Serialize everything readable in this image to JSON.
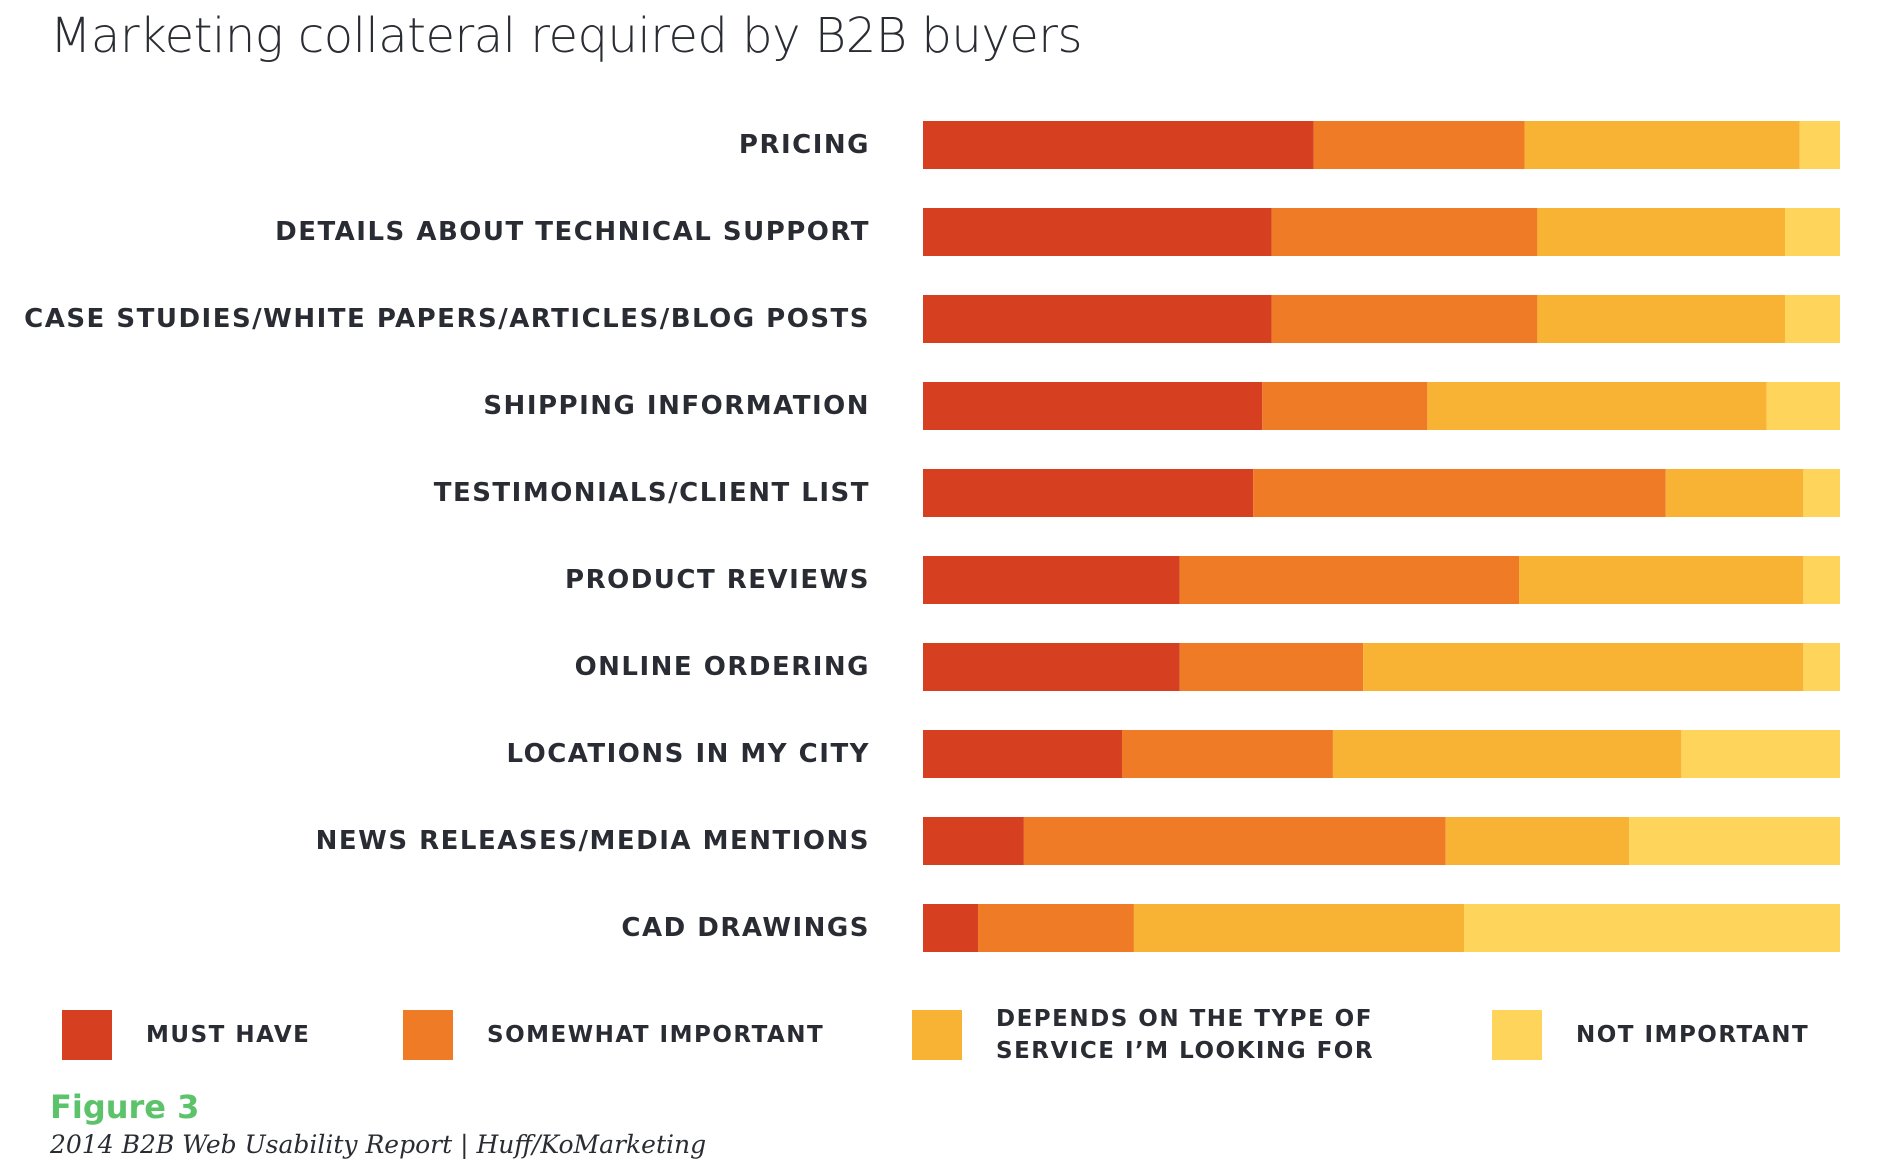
{
  "page": {
    "title": "Marketing collateral required by B2B buyers",
    "figure_label": "Figure 3",
    "source": "2014 B2B Web Usability Report | Huff/KoMarketing"
  },
  "legend": [
    {
      "lines": [
        "MUST HAVE"
      ],
      "color": "#d63f1f"
    },
    {
      "lines": [
        "SOMEWHAT IMPORTANT"
      ],
      "color": "#ef7b26"
    },
    {
      "lines": [
        "DEPENDS ON THE TYPE OF",
        "SERVICE I’M LOOKING FOR"
      ],
      "color": "#f8b234"
    },
    {
      "lines": [
        "NOT IMPORTANT"
      ],
      "color": "#fed55a"
    }
  ],
  "chart_data": {
    "type": "bar",
    "orientation": "horizontal",
    "stacked": true,
    "normalized": true,
    "title": "Marketing collateral required by B2B buyers",
    "xlabel": "",
    "ylabel": "",
    "xlim": [
      0,
      100
    ],
    "grid": false,
    "legend_position": "bottom",
    "categories": [
      "PRICING",
      "DETAILS ABOUT TECHNICAL SUPPORT",
      "CASE STUDIES/WHITE PAPERS/ARTICLES/BLOG POSTS",
      "SHIPPING INFORMATION",
      "TESTIMONIALS/CLIENT LIST",
      "PRODUCT REVIEWS",
      "ONLINE ORDERING",
      "LOCATIONS IN MY CITY",
      "NEWS RELEASES/MEDIA MENTIONS",
      "CAD DRAWINGS"
    ],
    "series": [
      {
        "name": "MUST HAVE",
        "color": "#d63f1f",
        "values": [
          42.6,
          38.0,
          38.0,
          37.0,
          36.0,
          28.0,
          28.0,
          21.7,
          11.0,
          6.0
        ]
      },
      {
        "name": "SOMEWHAT IMPORTANT",
        "color": "#ef7b26",
        "values": [
          23.0,
          29.0,
          29.0,
          18.0,
          45.0,
          37.0,
          20.0,
          23.0,
          46.0,
          17.0
        ]
      },
      {
        "name": "DEPENDS ON THE TYPE OF SERVICE I’M LOOKING FOR",
        "color": "#f8b234",
        "values": [
          30.0,
          27.0,
          27.0,
          37.0,
          15.0,
          31.0,
          48.0,
          38.0,
          20.0,
          36.0
        ]
      },
      {
        "name": "NOT IMPORTANT",
        "color": "#fed55a",
        "values": [
          4.4,
          6.0,
          6.0,
          8.0,
          4.0,
          4.0,
          4.0,
          17.3,
          23.0,
          41.0
        ]
      }
    ]
  }
}
